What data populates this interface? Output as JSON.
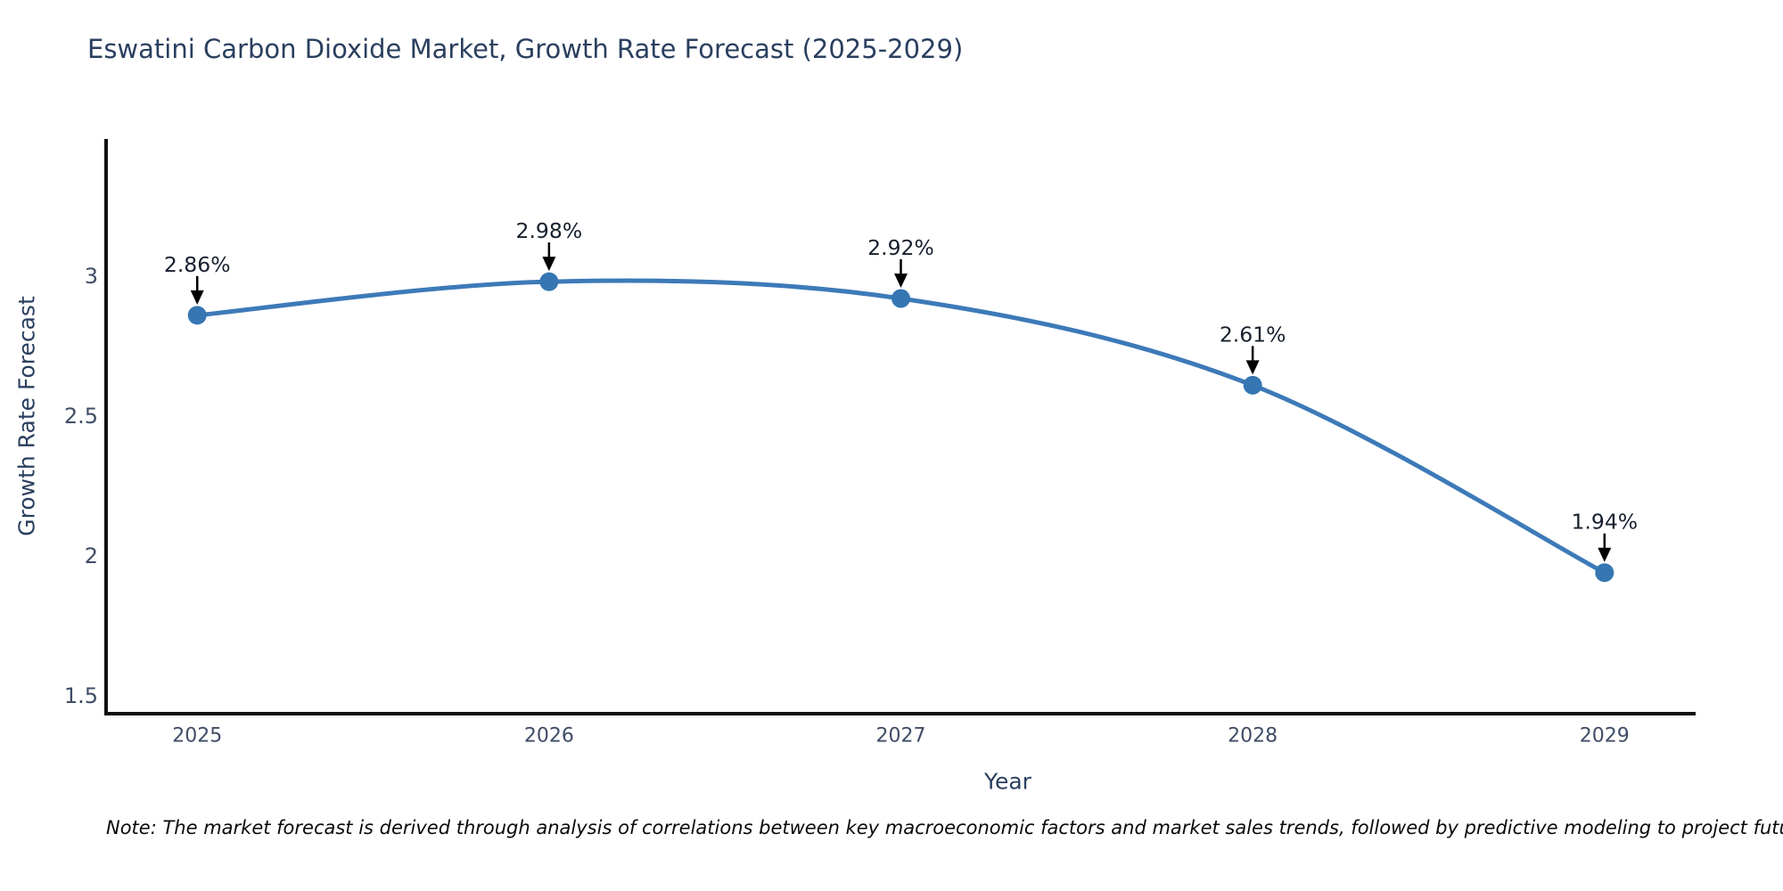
{
  "note": "Note: The market forecast is derived through analysis of correlations between key macroeconomic factors and market sales trends, followed by predictive modeling to project future sales",
  "chart_data": {
    "type": "line",
    "title": "Eswatini Carbon Dioxide Market, Growth Rate Forecast (2025-2029)",
    "xlabel": "Year",
    "ylabel": "Growth Rate Forecast",
    "x": [
      2025,
      2026,
      2027,
      2028,
      2029
    ],
    "values": [
      2.86,
      2.98,
      2.92,
      2.61,
      1.94
    ],
    "point_labels": [
      "2.86%",
      "2.98%",
      "2.92%",
      "2.61%",
      "1.94%"
    ],
    "xticks": [
      2025,
      2026,
      2027,
      2028,
      2029
    ],
    "xtick_labels": [
      "2025",
      "2026",
      "2027",
      "2028",
      "2029"
    ],
    "yticks": [
      1.5,
      2,
      2.5,
      3
    ],
    "ytick_labels": [
      "1.5",
      "2",
      "2.5",
      "3"
    ],
    "xlim": [
      2024.741,
      2029.259
    ],
    "ylim": [
      1.436,
      3.49
    ],
    "grid": false,
    "legend": "none",
    "curve": "spline",
    "colors": {
      "line": "#3d7ab8",
      "marker": "#3676b2",
      "axis": "#111111",
      "tick_label": "#3f4d66",
      "axis_title": "#2a3f5f",
      "annotation_text": "#16202e",
      "annotation_arrow": "#000000"
    }
  }
}
